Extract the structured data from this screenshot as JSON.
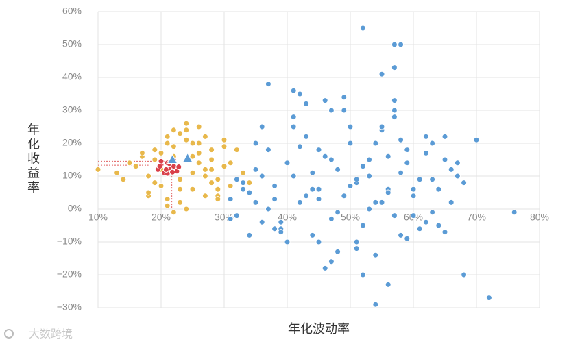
{
  "chart_data": {
    "type": "scatter",
    "ylabel": "年化收益率",
    "xlabel": "年化波动率",
    "watermark": "大数跨境",
    "xlim": [
      10,
      80
    ],
    "ylim": [
      -30,
      60
    ],
    "grid": true,
    "xticks": [
      {
        "value": 10,
        "label": "10%"
      },
      {
        "value": 20,
        "label": "20%"
      },
      {
        "value": 30,
        "label": "30%"
      },
      {
        "value": 40,
        "label": "40%"
      },
      {
        "value": 50,
        "label": "50%"
      },
      {
        "value": 60,
        "label": "60%"
      },
      {
        "value": 70,
        "label": "70%"
      },
      {
        "value": 80,
        "label": "80%"
      }
    ],
    "yticks": [
      {
        "value": -30,
        "label": "−30%"
      },
      {
        "value": -20,
        "label": "−20%"
      },
      {
        "value": -10,
        "label": "−10%"
      },
      {
        "value": 0,
        "label": "0%"
      },
      {
        "value": 10,
        "label": "10%"
      },
      {
        "value": 20,
        "label": "20%"
      },
      {
        "value": 30,
        "label": "30%"
      },
      {
        "value": 40,
        "label": "40%"
      },
      {
        "value": 50,
        "label": "50%"
      },
      {
        "value": 60,
        "label": "60%"
      }
    ],
    "series": [
      {
        "color": "#5b9bd5",
        "marker": "circle",
        "x": [
          31,
          32,
          33,
          34,
          35,
          36,
          37,
          38,
          39,
          40,
          41,
          42,
          43,
          44,
          45,
          46,
          47,
          48,
          49,
          50,
          51,
          52,
          53,
          54,
          55,
          56,
          57,
          58,
          59,
          60,
          61,
          62,
          63,
          64,
          65,
          66,
          67,
          68,
          31,
          33,
          35,
          37,
          39,
          41,
          43,
          45,
          47,
          49,
          51,
          53,
          55,
          57,
          59,
          61,
          63,
          65,
          67,
          34,
          36,
          38,
          40,
          42,
          44,
          46,
          48,
          50,
          52,
          54,
          56,
          58,
          60,
          62,
          64,
          66,
          32,
          35,
          38,
          41,
          44,
          47,
          50,
          53,
          56,
          59,
          62,
          65,
          36,
          39,
          42,
          45,
          48,
          51,
          54,
          57,
          60,
          63,
          46,
          52,
          56,
          58,
          43,
          49,
          55,
          37,
          47,
          57,
          41,
          53,
          45,
          51,
          52,
          57,
          57,
          58,
          55,
          76,
          72,
          70,
          68,
          54
        ],
        "values": [
          3,
          -2,
          8,
          5,
          12,
          -4,
          18,
          7,
          -6,
          14,
          10,
          2,
          22,
          -8,
          6,
          16,
          -3,
          12,
          4,
          20,
          8,
          -5,
          15,
          2,
          24,
          6,
          -2,
          11,
          18,
          4,
          9,
          -4,
          20,
          6,
          15,
          2,
          10,
          8,
          -3,
          6,
          20,
          0,
          -7,
          25,
          4,
          -10,
          15,
          30,
          -12,
          10,
          2,
          28,
          14,
          -6,
          9,
          22,
          14,
          -8,
          10,
          3,
          -10,
          19,
          6,
          33,
          -1,
          25,
          13,
          -14,
          5,
          21,
          -2,
          17,
          -5,
          12,
          9,
          2,
          -6,
          28,
          11,
          -16,
          7,
          0,
          16,
          -9,
          22,
          -7,
          25,
          -4,
          35,
          3,
          -13,
          -10,
          20,
          30,
          6,
          -1,
          -18,
          -20,
          -23,
          -8,
          32,
          34,
          25,
          38,
          30,
          33,
          36,
          15,
          18,
          9,
          55,
          50,
          43,
          50,
          41,
          -1,
          -27,
          21,
          -20,
          -29
        ]
      },
      {
        "color": "#e8b84b",
        "marker": "circle",
        "x": [
          10,
          13,
          14,
          15,
          16,
          17,
          18,
          19,
          20,
          21,
          22,
          23,
          24,
          25,
          26,
          27,
          28,
          29,
          30,
          31,
          32,
          33,
          18,
          19,
          20,
          21,
          22,
          23,
          24,
          25,
          26,
          27,
          28,
          29,
          30,
          31,
          17,
          19,
          21,
          23,
          25,
          27,
          29,
          22,
          24,
          26,
          28,
          20,
          18,
          34,
          24,
          25,
          23,
          27,
          26,
          21,
          29,
          30,
          22,
          28
        ],
        "values": [
          12,
          11,
          9,
          14,
          13,
          16,
          10,
          18,
          7,
          22,
          19,
          6,
          24,
          16,
          20,
          12,
          15,
          9,
          21,
          14,
          18,
          11,
          4,
          8,
          12,
          3,
          16,
          9,
          21,
          6,
          25,
          10,
          18,
          4,
          13,
          7,
          17,
          15,
          20,
          2,
          11,
          22,
          6,
          -1,
          0,
          14,
          8,
          17,
          5,
          8,
          26,
          20,
          23,
          4,
          17,
          1,
          3,
          19,
          24,
          12
        ]
      },
      {
        "color": "#d9404a",
        "marker": "circle",
        "x": [
          19.5,
          20,
          20.5,
          21,
          21.5,
          22,
          22.5,
          20,
          21,
          22,
          19.8,
          20.8,
          21.8,
          22.8,
          21.3
        ],
        "values": [
          12,
          13.5,
          11,
          14,
          12.5,
          13,
          11.5,
          14.5,
          10.8,
          14.8,
          13,
          12,
          11.2,
          12.8,
          13.8
        ]
      },
      {
        "color": "#5b9bd5",
        "marker": "triangle",
        "x": [
          21.8,
          24.2
        ],
        "values": [
          14.9,
          15.3
        ]
      }
    ],
    "guide_lines": {
      "color": "#e06060",
      "lines": [
        {
          "x": [
            10,
            21.7
          ],
          "y": [
            14.5,
            14.5
          ]
        },
        {
          "x": [
            10,
            18
          ],
          "y": [
            13.3,
            13.3
          ]
        },
        {
          "x": [
            21.7,
            21.7
          ],
          "y": [
            13.3,
            0
          ]
        }
      ]
    }
  }
}
